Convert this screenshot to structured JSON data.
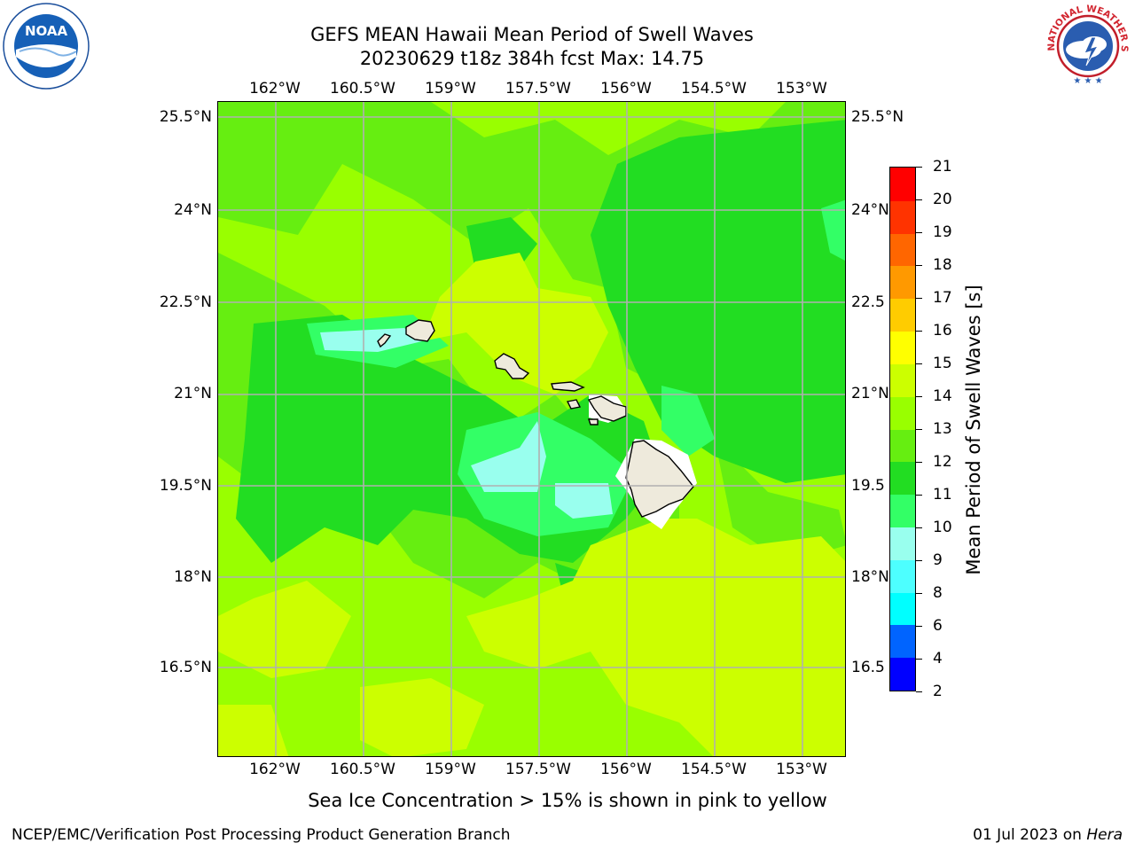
{
  "title": {
    "line1": "GEFS MEAN Hawaii Mean Period of Swell Waves",
    "line2": "20230629 t18z 384h fcst   Max: 14.75"
  },
  "logos": {
    "left": "NOAA",
    "right": "NATIONAL WEATHER SERVICE"
  },
  "map": {
    "lon_ticks": [
      "162°W",
      "160.5°W",
      "159°W",
      "157.5°W",
      "156°W",
      "154.5°W",
      "153°W"
    ],
    "lat_ticks": [
      "25.5°N",
      "24°N",
      "22.5°N",
      "21°N",
      "19.5°N",
      "18°N",
      "16.5°N"
    ],
    "lat_ticks_right": [
      "25.5°N",
      "24°N",
      "22.5",
      "21°N",
      "19.5",
      "18°N",
      "16.5"
    ],
    "field_value_range": [
      9,
      14.75
    ],
    "land_color": "#eeeadc",
    "grid_color": "#b0b0b0"
  },
  "colorbar": {
    "title": "Mean Period of Swell Waves [s]",
    "levels": [
      "2",
      "4",
      "6",
      "8",
      "9",
      "10",
      "11",
      "12",
      "13",
      "14",
      "15",
      "16",
      "17",
      "18",
      "19",
      "20",
      "21"
    ],
    "colors": [
      "#0000ff",
      "#0064ff",
      "#00ffff",
      "#4dffff",
      "#99ffee",
      "#33ff66",
      "#22dd22",
      "#66ee11",
      "#99ff00",
      "#ccff00",
      "#ffff00",
      "#ffcc00",
      "#ff9900",
      "#ff6600",
      "#ff3300",
      "#ff0000"
    ]
  },
  "footer": {
    "note": "Sea Ice Concentration > 15% is shown in pink to yellow",
    "credit": "NCEP/EMC/Verification Post Processing Product Generation Branch",
    "date": "01 Jul 2023 on",
    "host": "Hera"
  }
}
